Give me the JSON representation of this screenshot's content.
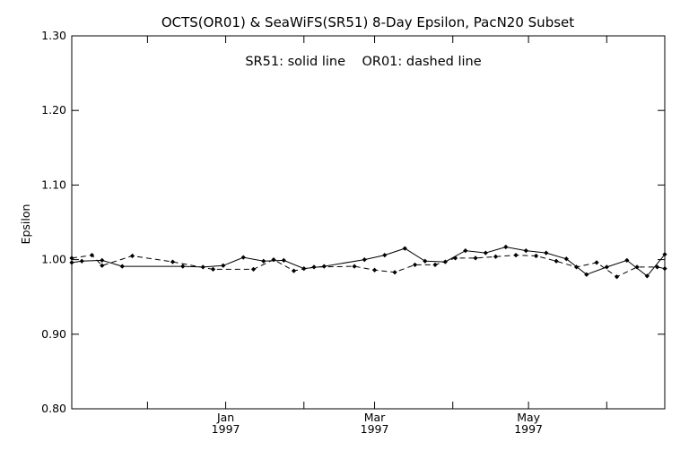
{
  "chart_data": {
    "type": "line",
    "title": "OCTS(OR01) & SeaWiFS(SR51) 8-Day Epsilon, PacN20 Subset",
    "annotation": "SR51: solid line    OR01: dashed line",
    "xlabel": "",
    "ylabel": "Epsilon",
    "ylim": [
      0.8,
      1.3
    ],
    "yticks": [
      "0.80",
      "0.90",
      "1.00",
      "1.10",
      "1.20",
      "1.30"
    ],
    "xlim": [
      "1996-11-01",
      "1997-06-24"
    ],
    "xticks": [
      {
        "date": "1997-01-01",
        "label": "Jan",
        "year": "1997"
      },
      {
        "date": "1997-03-01",
        "label": "Mar",
        "year": "1997"
      },
      {
        "date": "1997-05-01",
        "label": "May",
        "year": "1997"
      }
    ],
    "x_minor_ticks": [
      "1996-12-01",
      "1997-02-01",
      "1997-04-01",
      "1997-06-01"
    ],
    "grid": false,
    "series": [
      {
        "name": "SR51",
        "style": "solid",
        "color": "#000000",
        "x": [
          "1996-11-01",
          "1996-11-05",
          "1996-11-13",
          "1996-11-21",
          "1996-12-15",
          "1996-12-23",
          "1996-12-31",
          "1997-01-08",
          "1997-01-16",
          "1997-01-24",
          "1997-02-01",
          "1997-02-09",
          "1997-02-25",
          "1997-03-05",
          "1997-03-13",
          "1997-03-21",
          "1997-03-29",
          "1997-04-06",
          "1997-04-14",
          "1997-04-22",
          "1997-04-30",
          "1997-05-08",
          "1997-05-16",
          "1997-05-24",
          "1997-06-01",
          "1997-06-09",
          "1997-06-17",
          "1997-06-24"
        ],
        "y": [
          0.996,
          0.998,
          0.999,
          0.991,
          0.991,
          0.99,
          0.992,
          1.003,
          0.998,
          0.999,
          0.988,
          0.991,
          1.0,
          1.006,
          1.015,
          0.998,
          0.997,
          1.012,
          1.009,
          1.017,
          1.012,
          1.009,
          1.001,
          0.98,
          0.99,
          0.999,
          0.978,
          1.007
        ]
      },
      {
        "name": "OR01",
        "style": "dashed",
        "color": "#000000",
        "x": [
          "1996-11-01",
          "1996-11-09",
          "1996-11-13",
          "1996-11-25",
          "1996-12-11",
          "1996-12-27",
          "1997-01-12",
          "1997-01-20",
          "1997-01-28",
          "1997-02-05",
          "1997-02-21",
          "1997-03-01",
          "1997-03-09",
          "1997-03-17",
          "1997-03-25",
          "1997-04-02",
          "1997-04-10",
          "1997-04-18",
          "1997-04-26",
          "1997-05-04",
          "1997-05-12",
          "1997-05-20",
          "1997-05-28",
          "1997-06-05",
          "1997-06-13",
          "1997-06-21",
          "1997-06-24"
        ],
        "y": [
          1.002,
          1.006,
          0.992,
          1.005,
          0.997,
          0.987,
          0.987,
          1.0,
          0.985,
          0.99,
          0.991,
          0.986,
          0.983,
          0.993,
          0.993,
          1.002,
          1.002,
          1.004,
          1.006,
          1.005,
          0.998,
          0.99,
          0.996,
          0.977,
          0.99,
          0.99,
          0.988
        ]
      }
    ]
  }
}
